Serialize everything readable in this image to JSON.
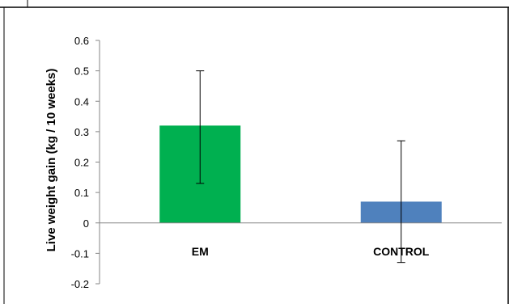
{
  "chart_data": {
    "type": "bar",
    "title": "",
    "xlabel": "",
    "ylabel": "Live weight gain (kg / 10 weeks)",
    "categories": [
      "EM",
      "CONTROL"
    ],
    "values": [
      0.32,
      0.07
    ],
    "error_low": [
      0.13,
      -0.13
    ],
    "error_high": [
      0.5,
      0.27
    ],
    "ylim": [
      -0.2,
      0.6
    ],
    "yticks": [
      "0.6",
      "0.5",
      "0.4",
      "0.3",
      "0.2",
      "0.1",
      "0",
      "-0.1",
      "-0.2"
    ],
    "tick_values": [
      0.6,
      0.5,
      0.4,
      0.3,
      0.2,
      0.1,
      0,
      -0.1,
      -0.2
    ],
    "bar_colors": [
      "#00b050",
      "#4f81bd"
    ],
    "grid": false,
    "legend": "none"
  }
}
